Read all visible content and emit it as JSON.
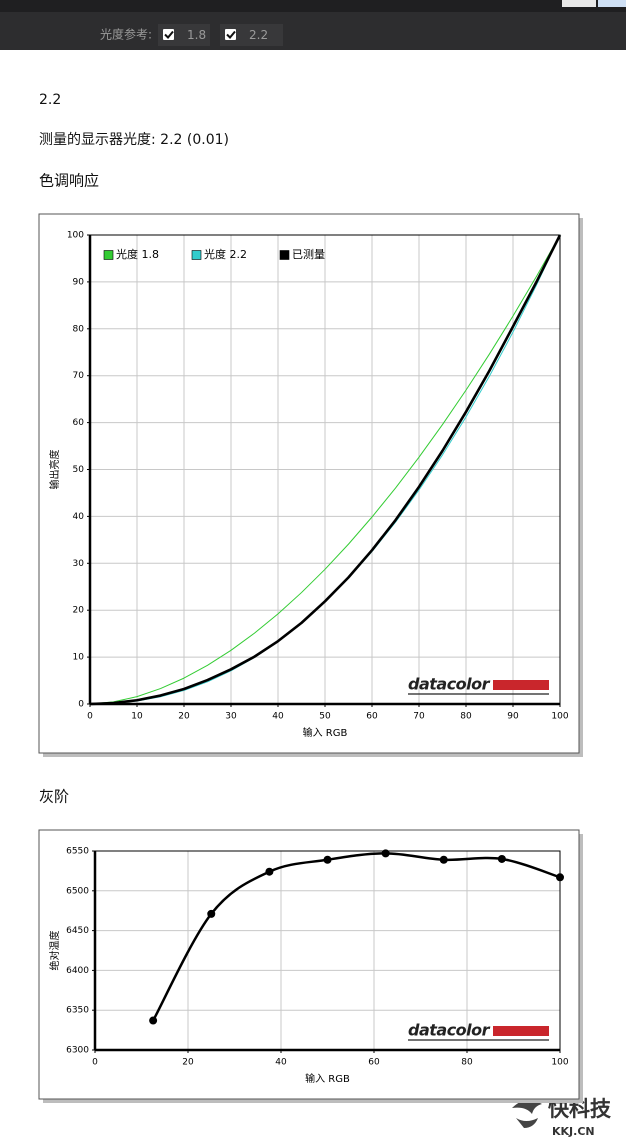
{
  "toolbar": {
    "label": "光度参考:",
    "options": [
      {
        "label": "1.8",
        "checked": true
      },
      {
        "label": "2.2",
        "checked": true
      }
    ]
  },
  "report": {
    "gamma": "2.2",
    "measured": "测量的显示器光度:  2.2 (0.01)"
  },
  "watermark": {
    "name": "快科技",
    "site": "KKJ.CN"
  },
  "chart_data": [
    {
      "type": "line",
      "title": "色调响应",
      "x_label": "输入 RGB",
      "y_label": "输出亮度",
      "logo": "datacolor",
      "x": [
        0,
        5,
        10,
        15,
        20,
        25,
        30,
        35,
        40,
        45,
        50,
        55,
        60,
        65,
        70,
        75,
        80,
        85,
        90,
        95,
        100
      ],
      "series": [
        {
          "name": "光度 1.8",
          "color": "#33cc33",
          "values": [
            0,
            0.46,
            1.58,
            3.29,
            5.52,
            8.25,
            11.45,
            15.11,
            19.22,
            23.76,
            28.72,
            34.09,
            39.87,
            46.05,
            52.62,
            59.58,
            66.92,
            74.64,
            82.72,
            91.18,
            100
          ]
        },
        {
          "name": "光度 2.2",
          "color": "#33cccc",
          "values": [
            0,
            0.14,
            0.63,
            1.54,
            2.9,
            4.74,
            7.07,
            9.93,
            13.32,
            17.26,
            21.76,
            26.84,
            32.5,
            38.76,
            45.63,
            53.11,
            61.21,
            69.94,
            79.31,
            89.33,
            100
          ]
        },
        {
          "name": "已测量",
          "color": "#000000",
          "values": [
            0,
            0.2,
            0.8,
            1.8,
            3.2,
            5.1,
            7.4,
            10.1,
            13.4,
            17.3,
            21.9,
            27.0,
            32.8,
            39.2,
            46.3,
            54.0,
            62.3,
            71.1,
            80.5,
            90.0,
            100
          ]
        }
      ],
      "xlim": [
        0,
        100
      ],
      "xticks": [
        0,
        10,
        20,
        30,
        40,
        50,
        60,
        70,
        80,
        90,
        100
      ],
      "ylim": [
        0,
        100
      ],
      "yticks": [
        0,
        10,
        20,
        30,
        40,
        50,
        60,
        70,
        80,
        90,
        100
      ],
      "grid": true,
      "legend": "top-left",
      "smooth": false,
      "markers": false
    },
    {
      "type": "line",
      "title": "灰阶",
      "x_label": "输入 RGB",
      "y_label": "绝对温度",
      "logo": "datacolor",
      "x": [
        12.5,
        25,
        37.5,
        50,
        62.5,
        75,
        87.5,
        100
      ],
      "series": [
        {
          "color": "#000000",
          "values": [
            6337,
            6471,
            6524,
            6539,
            6547,
            6539,
            6540,
            6517
          ]
        }
      ],
      "xlim": [
        0,
        100
      ],
      "xticks": [
        0,
        20,
        40,
        60,
        80,
        100
      ],
      "ylim": [
        6300,
        6550
      ],
      "yticks": [
        6300,
        6350,
        6400,
        6450,
        6500,
        6550
      ],
      "grid": true,
      "smooth": true,
      "markers": true
    }
  ]
}
